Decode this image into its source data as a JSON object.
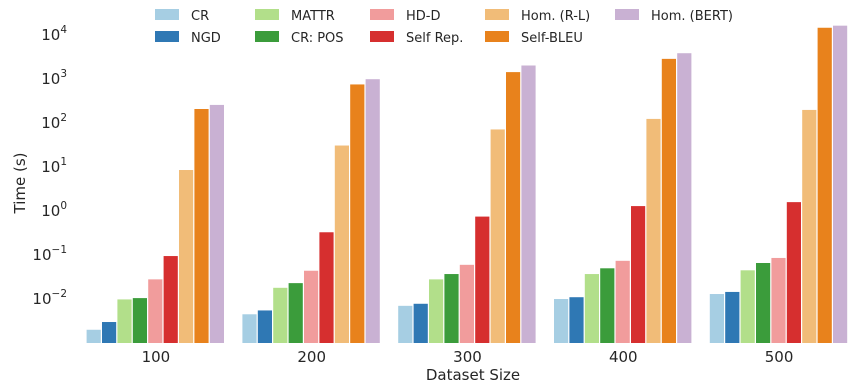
{
  "chart_data": {
    "type": "bar",
    "scale_y": "log",
    "xlabel": "Dataset Size",
    "ylabel": "Time (s)",
    "categories": [
      "100",
      "200",
      "300",
      "400",
      "500"
    ],
    "ylim": [
      0.001,
      20000
    ],
    "y_ticks": [
      {
        "base": "10",
        "exp": "−2",
        "value": 0.01
      },
      {
        "base": "10",
        "exp": "−1",
        "value": 0.1
      },
      {
        "base": "10",
        "exp": "0",
        "value": 1
      },
      {
        "base": "10",
        "exp": "1",
        "value": 10
      },
      {
        "base": "10",
        "exp": "2",
        "value": 100
      },
      {
        "base": "10",
        "exp": "3",
        "value": 1000
      },
      {
        "base": "10",
        "exp": "4",
        "value": 10000
      }
    ],
    "legend_position": "top",
    "grid": false,
    "series": [
      {
        "name": "CR",
        "color": "#a6cee3",
        "values": [
          0.002,
          0.0045,
          0.007,
          0.01,
          0.013
        ]
      },
      {
        "name": "NGD",
        "color": "#2f78b4",
        "values": [
          0.003,
          0.0055,
          0.0078,
          0.011,
          0.0145
        ]
      },
      {
        "name": "MATTR",
        "color": "#b2df8a",
        "values": [
          0.0098,
          0.018,
          0.028,
          0.037,
          0.045
        ]
      },
      {
        "name": "CR: POS",
        "color": "#3b9c3b",
        "values": [
          0.0105,
          0.023,
          0.037,
          0.05,
          0.066
        ]
      },
      {
        "name": "HD-D",
        "color": "#f19c9c",
        "values": [
          0.028,
          0.044,
          0.06,
          0.074,
          0.086
        ]
      },
      {
        "name": "Self Rep.",
        "color": "#d62f2f",
        "values": [
          0.095,
          0.33,
          0.75,
          1.3,
          1.6
        ]
      },
      {
        "name": "Hom. (R-L)",
        "color": "#f1bc78",
        "values": [
          8.6,
          31,
          72,
          125,
          200
        ]
      },
      {
        "name": "Self-BLEU",
        "color": "#e8821c",
        "values": [
          210,
          760,
          1450,
          2900,
          14800
        ]
      },
      {
        "name": "Hom. (BERT)",
        "color": "#c9b1d3",
        "values": [
          260,
          1000,
          2050,
          3900,
          16500
        ]
      }
    ]
  }
}
